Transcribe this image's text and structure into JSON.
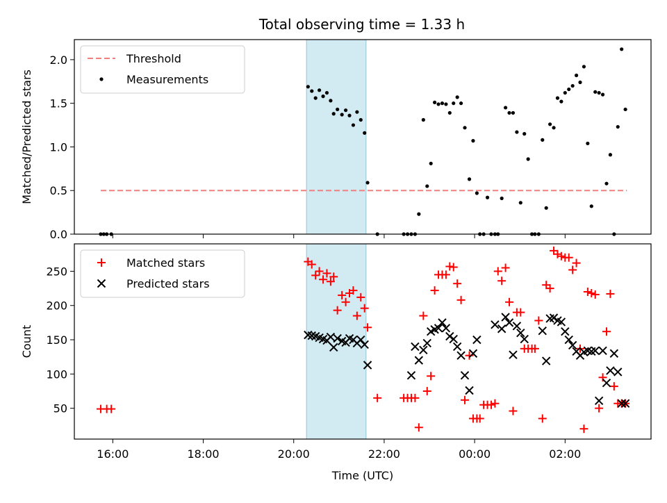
{
  "title": "Total observing time = 1.33 h",
  "colors": {
    "threshold": "#f08080",
    "measurement": "#000000",
    "matched": "#ff0000",
    "predicted": "#000000",
    "highlight": "#add8e6"
  },
  "chart_data": [
    {
      "type": "scatter",
      "panel": "top",
      "ylabel": "Matched/Predicted stars",
      "ylim": [
        0,
        2.23
      ],
      "xlim": [
        "15:09",
        "03:54"
      ],
      "x_ticks": [
        "16:00",
        "18:00",
        "20:00",
        "22:00",
        "00:00",
        "02:00"
      ],
      "y_ticks": [
        "0.0",
        "0.5",
        "1.0",
        "1.5",
        "2.0"
      ],
      "highlight_span": [
        "20:17",
        "21:36"
      ],
      "legend": {
        "position": "upper left",
        "entries": [
          "Threshold",
          "Measurements"
        ]
      },
      "threshold": {
        "name": "Threshold",
        "value": 0.5,
        "x_range": [
          "15:44",
          "03:22"
        ]
      },
      "series": [
        {
          "name": "Measurements",
          "x": [
            "15:44",
            "15:48",
            "15:52",
            "15:58",
            "20:19",
            "20:24",
            "20:29",
            "20:34",
            "20:39",
            "20:44",
            "20:49",
            "20:53",
            "20:58",
            "21:04",
            "21:09",
            "21:14",
            "21:19",
            "21:24",
            "21:29",
            "21:34",
            "21:38",
            "21:51",
            "22:26",
            "22:31",
            "22:36",
            "22:41",
            "22:46",
            "22:52",
            "22:57",
            "23:02",
            "23:07",
            "23:12",
            "23:17",
            "23:22",
            "23:27",
            "23:32",
            "23:37",
            "23:42",
            "23:47",
            "23:53",
            "23:58",
            "00:03",
            "00:07",
            "00:12",
            "00:17",
            "00:22",
            "00:27",
            "00:31",
            "00:36",
            "00:41",
            "00:46",
            "00:51",
            "00:56",
            "01:01",
            "01:06",
            "01:11",
            "01:16",
            "01:20",
            "01:25",
            "01:30",
            "01:35",
            "01:40",
            "01:45",
            "01:50",
            "01:55",
            "02:00",
            "02:05",
            "02:10",
            "02:15",
            "02:20",
            "02:25",
            "02:30",
            "02:35",
            "02:40",
            "02:45",
            "02:50",
            "02:55",
            "03:00",
            "03:05",
            "03:10",
            "03:15",
            "03:20"
          ],
          "y": [
            0,
            0,
            0,
            0,
            1.69,
            1.64,
            1.56,
            1.65,
            1.58,
            1.62,
            1.53,
            1.38,
            1.43,
            1.37,
            1.42,
            1.36,
            1.25,
            1.4,
            1.31,
            1.16,
            0.59,
            0,
            0,
            0,
            0,
            0,
            0.23,
            1.31,
            0.55,
            0.81,
            1.51,
            1.49,
            1.5,
            1.49,
            1.39,
            1.5,
            1.57,
            1.5,
            1.22,
            0.63,
            1.07,
            0.47,
            0,
            0,
            0.42,
            0,
            0,
            0,
            0.41,
            1.45,
            1.39,
            1.39,
            1.17,
            0.36,
            1.15,
            0.86,
            0,
            0,
            0,
            1.08,
            0.3,
            1.26,
            1.22,
            1.56,
            1.52,
            1.62,
            1.66,
            1.7,
            1.82,
            1.74,
            1.92,
            1.04,
            0.32,
            1.63,
            1.62,
            1.6,
            0.58,
            0.91,
            0,
            1.23,
            2.12,
            1.43
          ]
        }
      ]
    },
    {
      "type": "scatter",
      "panel": "bottom",
      "xlabel": "Time (UTC)",
      "ylabel": "Count",
      "ylim": [
        5,
        290
      ],
      "xlim": [
        "15:09",
        "03:54"
      ],
      "x_ticks": [
        "16:00",
        "18:00",
        "20:00",
        "22:00",
        "00:00",
        "02:00"
      ],
      "y_ticks": [
        "50",
        "100",
        "150",
        "200",
        "250"
      ],
      "highlight_span": [
        "20:17",
        "21:36"
      ],
      "legend": {
        "position": "upper left",
        "entries": [
          "Matched stars",
          "Predicted stars"
        ]
      },
      "series": [
        {
          "name": "Matched stars",
          "marker": "plus",
          "x": [
            "15:44",
            "15:52",
            "15:58",
            "20:19",
            "20:24",
            "20:29",
            "20:34",
            "20:39",
            "20:44",
            "20:49",
            "20:53",
            "20:58",
            "21:04",
            "21:09",
            "21:14",
            "21:19",
            "21:24",
            "21:29",
            "21:34",
            "21:38",
            "21:51",
            "22:26",
            "22:31",
            "22:36",
            "22:41",
            "22:46",
            "22:52",
            "22:57",
            "23:02",
            "23:07",
            "23:12",
            "23:17",
            "23:22",
            "23:27",
            "23:32",
            "23:37",
            "23:42",
            "23:47",
            "23:53",
            "23:58",
            "00:03",
            "00:07",
            "00:12",
            "00:17",
            "00:22",
            "00:27",
            "00:31",
            "00:36",
            "00:41",
            "00:46",
            "00:51",
            "00:56",
            "01:01",
            "01:06",
            "01:11",
            "01:16",
            "01:20",
            "01:25",
            "01:30",
            "01:35",
            "01:40",
            "01:45",
            "01:50",
            "01:55",
            "02:00",
            "02:05",
            "02:10",
            "02:15",
            "02:20",
            "02:25",
            "02:30",
            "02:35",
            "02:40",
            "02:45",
            "02:50",
            "02:55",
            "03:00",
            "03:05",
            "03:10",
            "03:15",
            "03:20"
          ],
          "y": [
            49,
            49,
            49,
            264,
            260,
            244,
            250,
            238,
            247,
            235,
            242,
            193,
            215,
            205,
            218,
            222,
            185,
            212,
            196,
            168,
            65,
            65,
            65,
            65,
            65,
            22,
            185,
            75,
            97,
            222,
            245,
            245,
            245,
            257,
            256,
            232,
            208,
            62,
            127,
            35,
            35,
            35,
            55,
            55,
            55,
            57,
            250,
            236,
            255,
            205,
            46,
            190,
            190,
            137,
            137,
            137,
            137,
            178,
            35,
            230,
            225,
            280,
            275,
            272,
            270,
            270,
            252,
            262,
            137,
            20,
            220,
            218,
            216,
            50,
            95,
            162,
            217,
            82,
            57,
            57,
            57
          ]
        },
        {
          "name": "Predicted stars",
          "marker": "x",
          "x": [
            "20:19",
            "20:24",
            "20:29",
            "20:34",
            "20:39",
            "20:44",
            "20:49",
            "20:53",
            "20:58",
            "21:04",
            "21:09",
            "21:14",
            "21:19",
            "21:24",
            "21:29",
            "21:34",
            "21:38",
            "22:36",
            "22:41",
            "22:46",
            "22:52",
            "22:57",
            "23:02",
            "23:07",
            "23:12",
            "23:17",
            "23:22",
            "23:27",
            "23:32",
            "23:37",
            "23:42",
            "23:47",
            "23:53",
            "23:58",
            "00:03",
            "00:27",
            "00:36",
            "00:41",
            "00:46",
            "00:51",
            "00:56",
            "01:01",
            "01:06",
            "01:30",
            "01:35",
            "01:40",
            "01:45",
            "01:50",
            "01:55",
            "02:00",
            "02:05",
            "02:10",
            "02:15",
            "02:20",
            "02:25",
            "02:30",
            "02:35",
            "02:40",
            "02:45",
            "02:50",
            "02:55",
            "03:00",
            "03:05",
            "03:10",
            "03:15",
            "03:20"
          ],
          "y": [
            157,
            156,
            155,
            153,
            151,
            149,
            154,
            139,
            152,
            148,
            146,
            152,
            150,
            145,
            150,
            143,
            113,
            98,
            140,
            120,
            135,
            145,
            162,
            165,
            167,
            175,
            167,
            155,
            151,
            140,
            127,
            98,
            76,
            130,
            150,
            172,
            166,
            183,
            175,
            128,
            170,
            160,
            151,
            163,
            119,
            181,
            182,
            178,
            176,
            162,
            150,
            142,
            133,
            127,
            132,
            134,
            133,
            134,
            61,
            134,
            87,
            105,
            130,
            103,
            57,
            57
          ]
        }
      ]
    }
  ]
}
